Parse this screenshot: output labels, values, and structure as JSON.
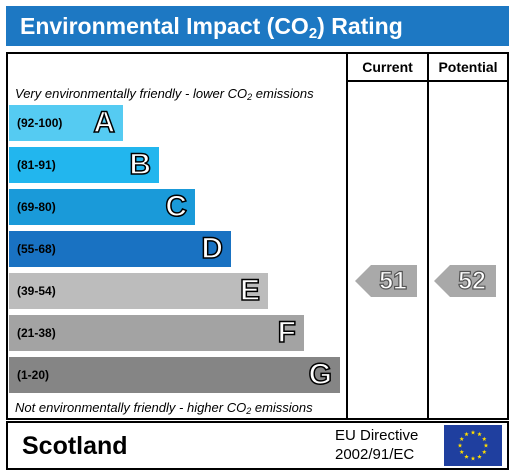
{
  "header": {
    "title_prefix": "Environmental Impact (CO",
    "title_sub": "2",
    "title_suffix": ") Rating"
  },
  "columns": {
    "current": "Current",
    "potential": "Potential"
  },
  "captions": {
    "top_prefix": "Very environmentally friendly - lower CO",
    "top_sub": "2",
    "top_suffix": " emissions",
    "bottom_prefix": "Not environmentally friendly - higher CO",
    "bottom_sub": "2",
    "bottom_suffix": " emissions"
  },
  "bands": [
    {
      "range": "(92-100)",
      "letter": "A",
      "color": "#55cbf2"
    },
    {
      "range": "(81-91)",
      "letter": "B",
      "color": "#22b6ee"
    },
    {
      "range": "(69-80)",
      "letter": "C",
      "color": "#1a9ad9"
    },
    {
      "range": "(55-68)",
      "letter": "D",
      "color": "#1972c2"
    },
    {
      "range": "(39-54)",
      "letter": "E",
      "color": "#bcbcbc"
    },
    {
      "range": "(21-38)",
      "letter": "F",
      "color": "#a3a3a3"
    },
    {
      "range": "(1-20)",
      "letter": "G",
      "color": "#858585"
    }
  ],
  "ratings": {
    "current": {
      "value": "51",
      "band": "E"
    },
    "potential": {
      "value": "52",
      "band": "E"
    }
  },
  "footer": {
    "region": "Scotland",
    "directive_line1": "EU Directive",
    "directive_line2": "2002/91/EC"
  },
  "icons": {
    "flag": "eu-flag-icon"
  }
}
